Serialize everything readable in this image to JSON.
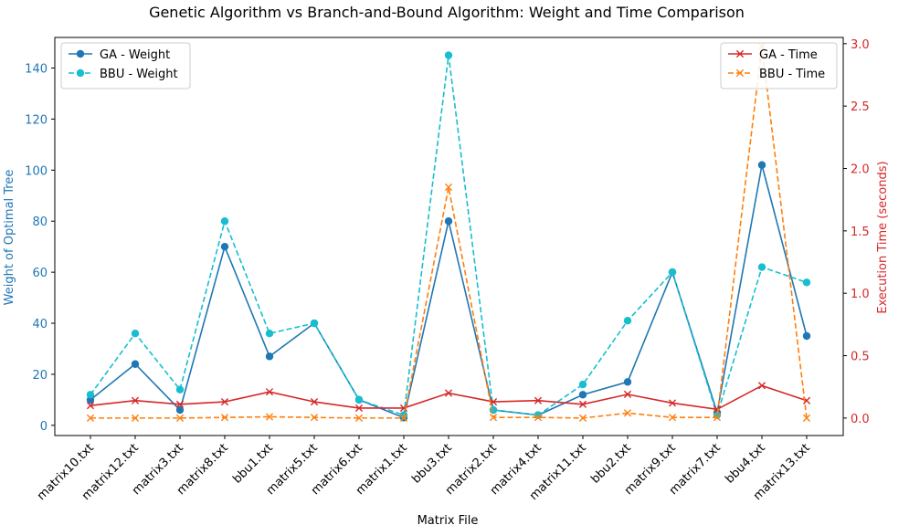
{
  "chart_data": {
    "type": "line",
    "title": "Genetic Algorithm vs Branch-and-Bound Algorithm: Weight and Time Comparison",
    "xlabel": "Matrix File",
    "ylabel_left": "Weight of Optimal Tree",
    "ylabel_right": "Execution Time (seconds)",
    "categories": [
      "matrix10.txt",
      "matrix12.txt",
      "matrix3.txt",
      "matrix8.txt",
      "bbu1.txt",
      "matrix5.txt",
      "matrix6.txt",
      "matrix1.txt",
      "bbu3.txt",
      "matrix2.txt",
      "matrix4.txt",
      "matrix11.txt",
      "bbu2.txt",
      "matrix9.txt",
      "matrix7.txt",
      "bbu4.txt",
      "matrix13.txt"
    ],
    "ylim_left": [
      -4,
      152
    ],
    "yticks_left": [
      0,
      20,
      40,
      60,
      80,
      100,
      120,
      140
    ],
    "ylim_right": [
      -0.14,
      3.05
    ],
    "yticks_right": [
      0.0,
      0.5,
      1.0,
      1.5,
      2.0,
      2.5,
      3.0
    ],
    "left_series": [
      {
        "name": "GA - Weight",
        "values": [
          10,
          24,
          6,
          70,
          27,
          40,
          10,
          3,
          80,
          6,
          4,
          12,
          17,
          60,
          5,
          102,
          35
        ],
        "color": "#1f77b4",
        "style": "solid",
        "marker": "circle"
      },
      {
        "name": "BBU - Weight",
        "values": [
          12,
          36,
          14,
          80,
          36,
          40,
          10,
          4,
          145,
          6,
          4,
          16,
          41,
          60,
          4,
          62,
          56
        ],
        "color": "#17becf",
        "style": "dashed",
        "marker": "circle"
      }
    ],
    "right_series": [
      {
        "name": "GA - Time",
        "values": [
          0.1,
          0.14,
          0.11,
          0.13,
          0.21,
          0.13,
          0.08,
          0.08,
          0.2,
          0.13,
          0.14,
          0.11,
          0.19,
          0.12,
          0.07,
          0.26,
          0.14
        ],
        "color": "#d62728",
        "style": "solid",
        "marker": "x"
      },
      {
        "name": "BBU - Time",
        "values": [
          0.0,
          0.0,
          0.0,
          0.005,
          0.01,
          0.005,
          0.0,
          0.0,
          1.85,
          0.005,
          0.005,
          0.0,
          0.04,
          0.005,
          0.005,
          2.98,
          0.0
        ],
        "color": "#ff7f0e",
        "style": "dashed",
        "marker": "x"
      }
    ],
    "legend_left_position": "top-left",
    "legend_right_position": "top-right",
    "grid": false
  }
}
